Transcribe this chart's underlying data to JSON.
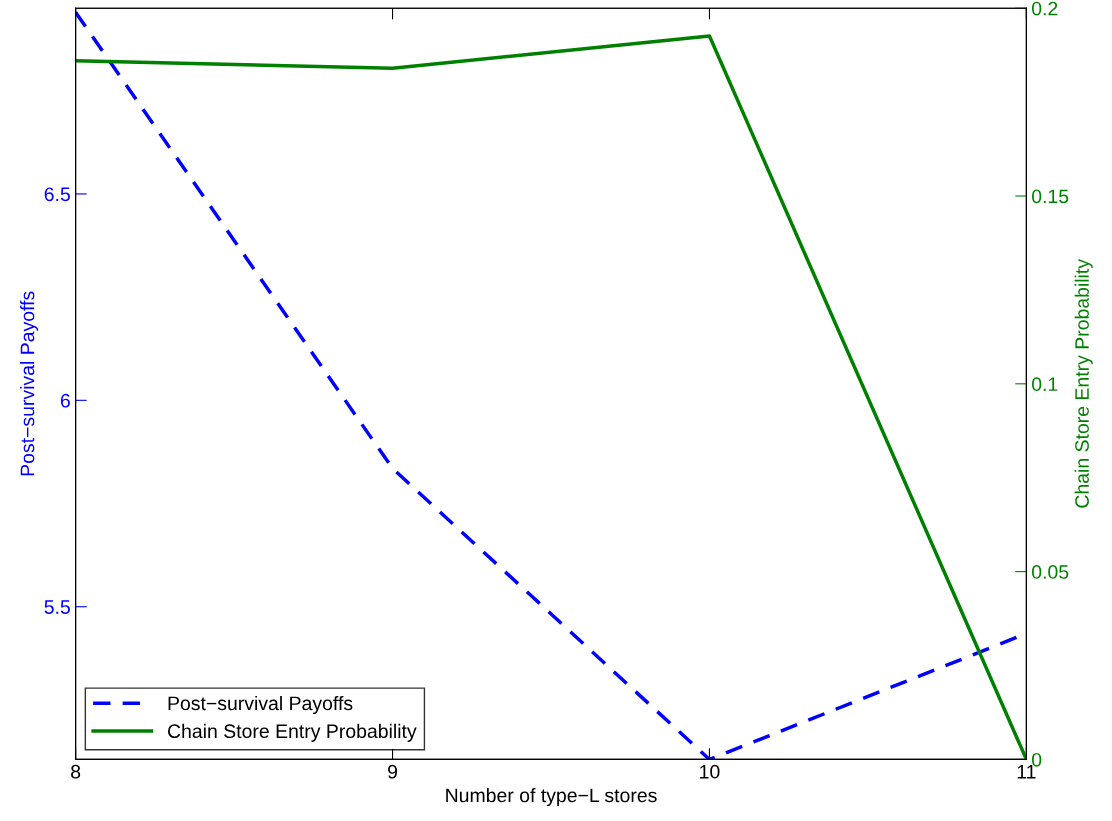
{
  "chart_data": {
    "type": "line",
    "xlabel": "Number of type−L stores",
    "ylabel": "Post−survival Payoffs",
    "y2label": "Chain Store Entry Probability",
    "x": [
      8,
      9,
      10,
      11
    ],
    "series": [
      {
        "name": "Post−survival Payoffs",
        "color": "#0000ff",
        "values": [
          6.94,
          5.835,
          5.13,
          5.435
        ],
        "line_style": "dashed"
      },
      {
        "name": "Chain Store Entry Probability",
        "color": "#008000",
        "values": [
          0.186,
          0.184,
          0.1926,
          0
        ],
        "axis": "y2",
        "line_style": "solid"
      }
    ],
    "xlim": [
      8,
      11
    ],
    "xticks": [
      8,
      9,
      10,
      11
    ],
    "ylim": [
      5.13,
      6.95
    ],
    "yticks": [
      5.5,
      6,
      6.5
    ],
    "y2lim": [
      0,
      0.2
    ],
    "y2ticks": [
      0,
      0.05,
      0.1,
      0.15,
      0.2
    ],
    "legend": "bottom left",
    "grid": false,
    "marker": "none"
  }
}
